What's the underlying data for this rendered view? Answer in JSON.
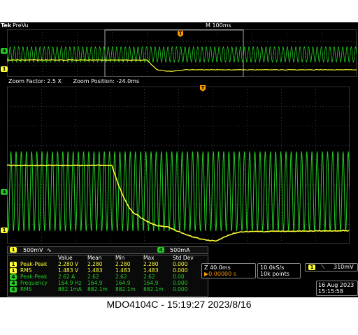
{
  "header": {
    "logo": "Tek",
    "status": "PreVu",
    "timebase": "M 100ms"
  },
  "zoom": {
    "factor": "Zoom Factor: 2.5 X",
    "position": "Zoom Position: -24.0ms"
  },
  "channels": {
    "ch1": {
      "num": "1",
      "scale": "500mV",
      "coupling": "∿",
      "color": "#ffff33"
    },
    "ch4": {
      "num": "4",
      "scale": "500mA",
      "color": "#22cc22"
    }
  },
  "trigger_marker": "T",
  "measurements": {
    "headers": [
      "Value",
      "Mean",
      "Min",
      "Max",
      "Std Dev"
    ],
    "rows": [
      {
        "ch": "1",
        "label": "Peak-Peak",
        "values": [
          "2.280 V",
          "2.280",
          "2.280",
          "2.280",
          "0.000"
        ]
      },
      {
        "ch": "1",
        "label": "RMS",
        "values": [
          "1.483 V",
          "1.483",
          "1.483",
          "1.483",
          "0.000"
        ]
      },
      {
        "ch": "4",
        "label": "Peak-Peak",
        "values": [
          "2.62 A",
          "2.62",
          "2.62",
          "2.62",
          "0.00"
        ]
      },
      {
        "ch": "4",
        "label": "Frequency",
        "values": [
          "164.9 Hz",
          "164.9",
          "164.9",
          "164.9",
          "0.000"
        ]
      },
      {
        "ch": "4",
        "label": "RMS",
        "values": [
          "882.1mA",
          "882.1m",
          "882.1m",
          "882.1m",
          "0.000"
        ]
      }
    ]
  },
  "zoom_time": {
    "scale": "Z 40.0ms",
    "delay": "▶0.00000 s"
  },
  "acquisition": {
    "rate": "10.0kS/s",
    "points": "10k points"
  },
  "trigger": {
    "ch": "1",
    "slope": "⟍",
    "level": "310mV"
  },
  "datetime": {
    "date": "16 Aug 2023",
    "time": "15:15:58"
  },
  "caption": "MDO4104C - 15:19:27   2023/8/16",
  "colors": {
    "ch1": "#ffff33",
    "ch4": "#22cc22",
    "trigger": "#ff9900"
  }
}
